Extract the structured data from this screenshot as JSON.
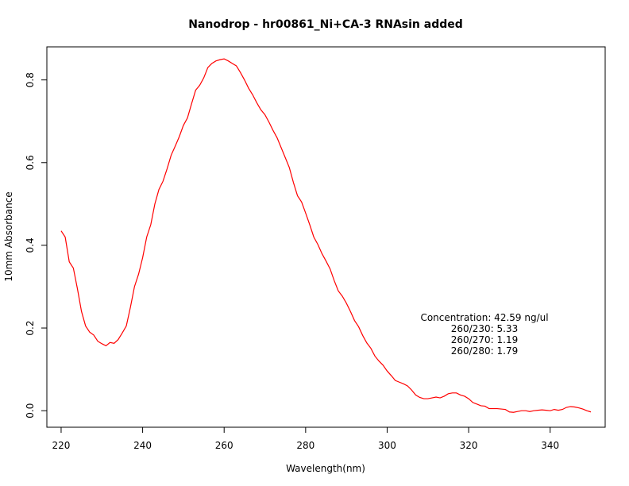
{
  "chart_data": {
    "type": "line",
    "title": "Nanodrop - hr00861_Ni+CA-3 RNAsin added",
    "xlabel": "Wavelength(nm)",
    "ylabel": "10mm Absorbance",
    "xlim": [
      216.5,
      353.5
    ],
    "ylim": [
      -0.04,
      0.88
    ],
    "xticks": [
      220,
      240,
      260,
      280,
      300,
      320,
      340
    ],
    "yticks": [
      0.0,
      0.2,
      0.4,
      0.6,
      0.8
    ],
    "xtick_labels": [
      "220",
      "240",
      "260",
      "280",
      "300",
      "320",
      "340"
    ],
    "ytick_labels": [
      "0.0",
      "0.2",
      "0.4",
      "0.6",
      "0.8"
    ],
    "grid": false,
    "series": [
      {
        "color": "#ff0000",
        "x": [
          220,
          221,
          222,
          223,
          224,
          225,
          226,
          227,
          228,
          229,
          230,
          231,
          232,
          233,
          234,
          235,
          236,
          237,
          238,
          239,
          240,
          241,
          242,
          243,
          244,
          245,
          246,
          247,
          248,
          249,
          250,
          251,
          252,
          253,
          254,
          255,
          256,
          257,
          258,
          259,
          260,
          261,
          262,
          263,
          264,
          265,
          266,
          267,
          268,
          269,
          270,
          271,
          272,
          273,
          274,
          275,
          276,
          277,
          278,
          279,
          280,
          281,
          282,
          283,
          284,
          285,
          286,
          287,
          288,
          289,
          290,
          291,
          292,
          293,
          294,
          295,
          296,
          297,
          298,
          299,
          300,
          301,
          302,
          303,
          304,
          305,
          306,
          307,
          308,
          309,
          310,
          311,
          312,
          313,
          314,
          315,
          316,
          317,
          318,
          319,
          320,
          321,
          322,
          323,
          324,
          325,
          326,
          327,
          328,
          329,
          330,
          331,
          332,
          333,
          334,
          335,
          336,
          337,
          338,
          339,
          340,
          341,
          342,
          343,
          344,
          345,
          346,
          347,
          348,
          349,
          350
        ],
        "y": [
          0.435,
          0.42,
          0.36,
          0.345,
          0.295,
          0.24,
          0.205,
          0.19,
          0.183,
          0.168,
          0.162,
          0.157,
          0.165,
          0.163,
          0.172,
          0.188,
          0.205,
          0.25,
          0.3,
          0.33,
          0.37,
          0.42,
          0.45,
          0.5,
          0.535,
          0.555,
          0.585,
          0.618,
          0.64,
          0.663,
          0.69,
          0.708,
          0.742,
          0.775,
          0.787,
          0.805,
          0.83,
          0.84,
          0.846,
          0.849,
          0.851,
          0.846,
          0.84,
          0.834,
          0.818,
          0.8,
          0.78,
          0.764,
          0.745,
          0.728,
          0.716,
          0.698,
          0.678,
          0.66,
          0.636,
          0.612,
          0.588,
          0.552,
          0.52,
          0.505,
          0.478,
          0.45,
          0.42,
          0.402,
          0.38,
          0.362,
          0.343,
          0.315,
          0.29,
          0.277,
          0.26,
          0.24,
          0.218,
          0.203,
          0.182,
          0.164,
          0.151,
          0.132,
          0.12,
          0.11,
          0.096,
          0.085,
          0.073,
          0.069,
          0.065,
          0.06,
          0.05,
          0.038,
          0.032,
          0.029,
          0.029,
          0.031,
          0.033,
          0.031,
          0.035,
          0.041,
          0.043,
          0.043,
          0.038,
          0.035,
          0.029,
          0.02,
          0.016,
          0.012,
          0.011,
          0.005,
          0.005,
          0.005,
          0.004,
          0.003,
          -0.003,
          -0.004,
          -0.002,
          0.0,
          0.0,
          -0.002,
          0.0,
          0.001,
          0.002,
          0.001,
          0.0,
          0.003,
          0.001,
          0.003,
          0.008,
          0.01,
          0.009,
          0.007,
          0.004,
          0.0,
          -0.003
        ]
      }
    ],
    "annotations": [
      "Concentration: 42.59 ng/ul",
      "260/230: 5.33",
      "260/270: 1.19",
      "260/280: 1.79"
    ]
  }
}
